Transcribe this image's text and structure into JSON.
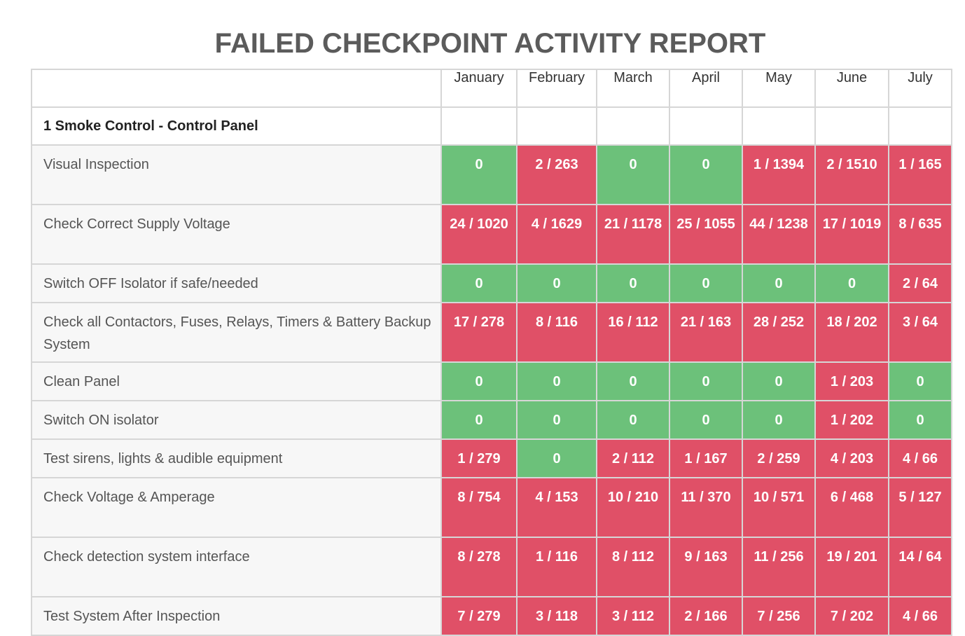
{
  "title": "FAILED CHECKPOINT ACTIVITY REPORT",
  "months": [
    "January",
    "February",
    "March",
    "April",
    "May",
    "June",
    "July"
  ],
  "section": {
    "label": "1 Smoke Control - Control Panel"
  },
  "colors": {
    "pass": "#6cc17a",
    "fail": "#e05067"
  },
  "rows": [
    {
      "label": "Visual Inspection",
      "values": [
        "0",
        "2 / 263",
        "0",
        "0",
        "1 / 1394",
        "2 / 1510",
        "1 / 165"
      ]
    },
    {
      "label": "Check Correct Supply Voltage",
      "values": [
        "24 / 1020",
        "4 / 1629",
        "21 / 1178",
        "25 / 1055",
        "44 / 1238",
        "17 / 1019",
        "8 / 635"
      ]
    },
    {
      "label": "Switch OFF Isolator if safe/needed",
      "values": [
        "0",
        "0",
        "0",
        "0",
        "0",
        "0",
        "2 / 64"
      ]
    },
    {
      "label": "Check all Contactors, Fuses, Relays, Timers & Battery Backup System",
      "values": [
        "17 / 278",
        "8 / 116",
        "16 / 112",
        "21 / 163",
        "28 / 252",
        "18 / 202",
        "3 / 64"
      ]
    },
    {
      "label": "Clean Panel",
      "values": [
        "0",
        "0",
        "0",
        "0",
        "0",
        "1 / 203",
        "0"
      ]
    },
    {
      "label": "Switch ON isolator",
      "values": [
        "0",
        "0",
        "0",
        "0",
        "0",
        "1 / 202",
        "0"
      ]
    },
    {
      "label": "Test sirens, lights & audible equipment",
      "values": [
        "1 / 279",
        "0",
        "2 / 112",
        "1 / 167",
        "2 / 259",
        "4 / 203",
        "4 / 66"
      ]
    },
    {
      "label": "Check Voltage & Amperage",
      "values": [
        "8 / 754",
        "4 / 153",
        "10 / 210",
        "11 / 370",
        "10 / 571",
        "6 / 468",
        "5 / 127"
      ]
    },
    {
      "label": "Check detection system interface",
      "values": [
        "8 / 278",
        "1 / 116",
        "8 / 112",
        "9 / 163",
        "11 / 256",
        "19 / 201",
        "14 / 64"
      ]
    },
    {
      "label": "Test System After Inspection",
      "values": [
        "7 / 279",
        "3 / 118",
        "3 / 112",
        "2 / 166",
        "7 / 256",
        "7 / 202",
        "4 / 66"
      ]
    }
  ]
}
